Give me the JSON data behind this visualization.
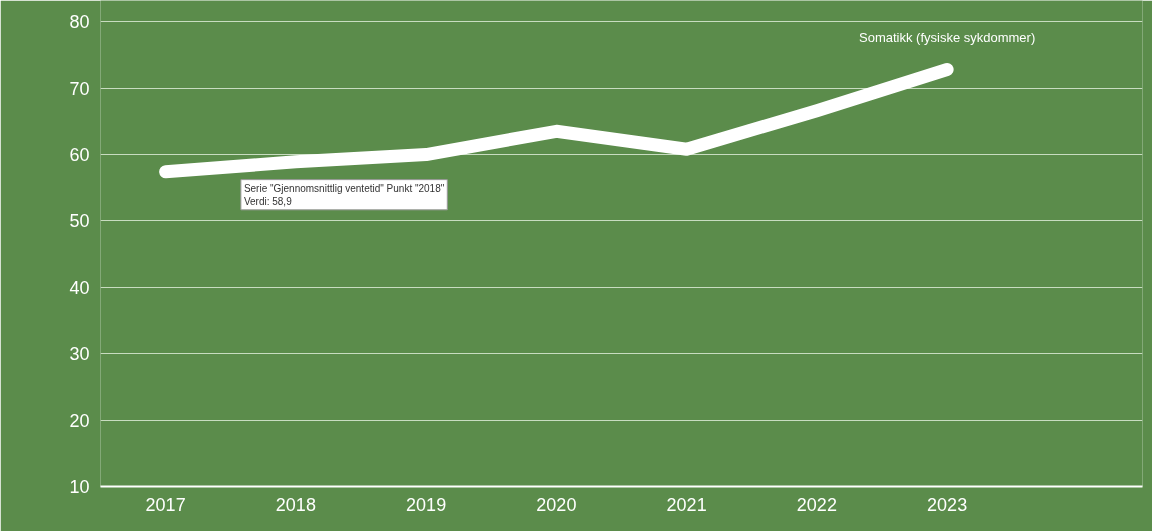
{
  "chart_data": {
    "type": "line",
    "categories": [
      "2017",
      "2018",
      "2019",
      "2020",
      "2021",
      "2022",
      "2023",
      null
    ],
    "series": [
      {
        "name": "Somatikk (fysiske sykdommer)",
        "color": "#ffffff",
        "values": [
          57.4,
          58.9,
          60.0,
          63.5,
          60.8,
          66.6,
          72.8,
          null
        ]
      }
    ],
    "ylim": [
      10,
      83.2
    ],
    "yticks": [
      10,
      20,
      30,
      40,
      50,
      60,
      70,
      80
    ],
    "grid": "y",
    "legend": false,
    "marker": "none",
    "line_style": "solid",
    "annotations": [
      {
        "text": "Serie \"Gjennomsnittlig ventetid\" Punkt \"2018\"\nVerdi: 58,9",
        "x": "2018",
        "y": 58.9
      }
    ]
  }
}
